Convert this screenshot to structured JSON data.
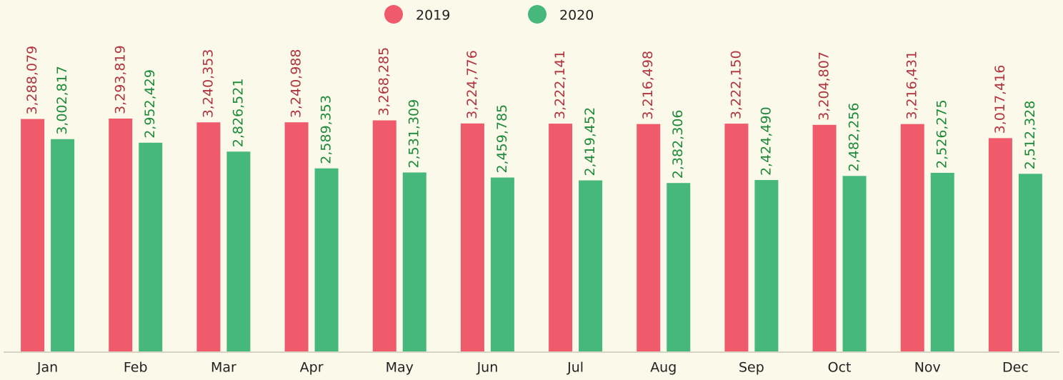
{
  "chart_data": {
    "type": "bar",
    "categories": [
      "Jan",
      "Feb",
      "Mar",
      "Apr",
      "May",
      "Jun",
      "Jul",
      "Aug",
      "Sep",
      "Oct",
      "Nov",
      "Dec"
    ],
    "series": [
      {
        "name": "2019",
        "color": "#f05b6b",
        "label_color": "#b0343f",
        "values": [
          3288079,
          3293819,
          3240353,
          3240988,
          3268285,
          3224776,
          3222141,
          3216498,
          3222150,
          3204807,
          3216431,
          3017416
        ],
        "value_labels": [
          "3,288,079",
          "3,293,819",
          "3,240,353",
          "3,240,988",
          "3,268,285",
          "3,224,776",
          "3,222,141",
          "3,216,498",
          "3,222,150",
          "3,204,807",
          "3,216,431",
          "3,017,416"
        ]
      },
      {
        "name": "2020",
        "color": "#47b87b",
        "label_color": "#1d8a3b",
        "values": [
          3002817,
          2952429,
          2826521,
          2589353,
          2531309,
          2459785,
          2419452,
          2382306,
          2424490,
          2482256,
          2526275,
          2512328
        ],
        "value_labels": [
          "3,002,817",
          "2,952,429",
          "2,826,521",
          "2,589,353",
          "2,531,309",
          "2,459,785",
          "2,419,452",
          "2,382,306",
          "2,424,490",
          "2,482,256",
          "2,526,275",
          "2,512,328"
        ]
      }
    ],
    "legend": "top"
  }
}
